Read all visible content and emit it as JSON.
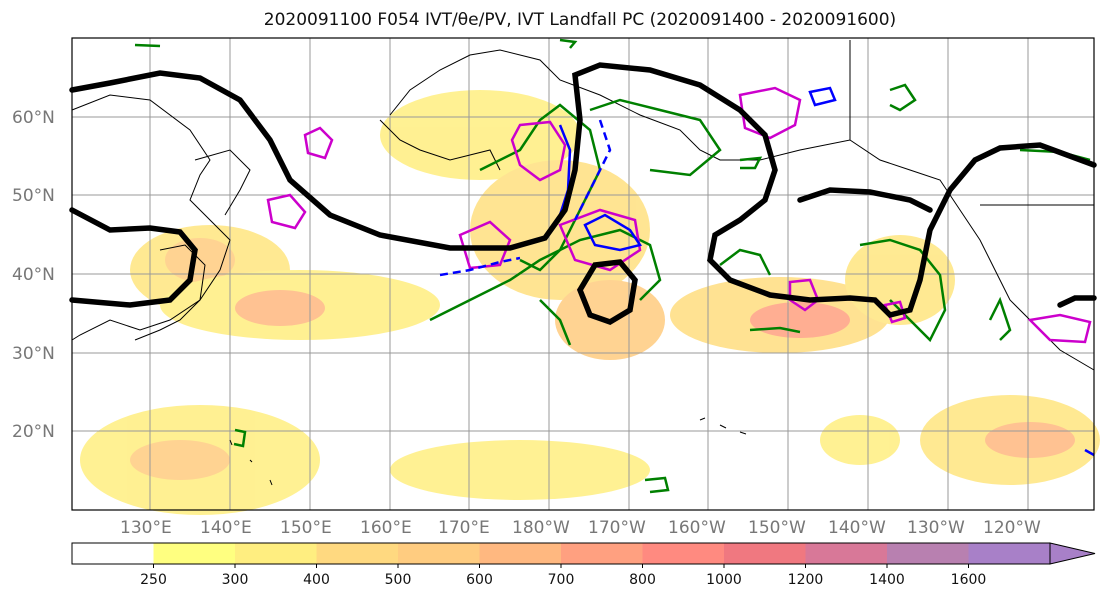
{
  "title": "2020091100 F054 IVT/θe/PV, IVT Landfall PC (2020091400 - 2020091600)",
  "latitudes": [
    "60°N",
    "50°N",
    "40°N",
    "30°N",
    "20°N"
  ],
  "longitudes": [
    "130°E",
    "140°E",
    "150°E",
    "160°E",
    "170°E",
    "180°W",
    "170°W",
    "160°W",
    "150°W",
    "140°W",
    "130°W",
    "120°W"
  ],
  "colorbar": {
    "ticks": [
      "250",
      "300",
      "400",
      "500",
      "600",
      "700",
      "800",
      "1000",
      "1200",
      "1400",
      "1600"
    ],
    "colors": [
      "#ffffff",
      "#ffff80",
      "#ffee80",
      "#ffd980",
      "#ffcc80",
      "#ffb880",
      "#ffa080",
      "#ff8a80",
      "#f07880",
      "#d87898",
      "#b880b0",
      "#a880c8"
    ],
    "extend": "max"
  },
  "layers": {
    "ivt_fill": "#ffb060",
    "heavy_contour": "#000000",
    "pv_contour": "#008000",
    "theta_contour_a": "#0000ff",
    "theta_contour_b": "#cc00cc"
  }
}
